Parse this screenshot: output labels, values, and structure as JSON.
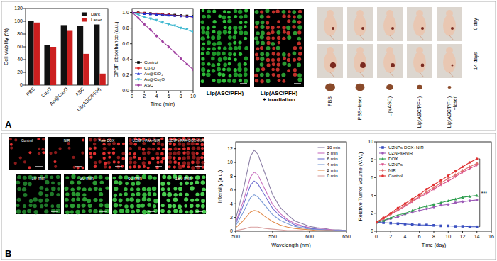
{
  "panel_labels": [
    "A",
    "B"
  ],
  "images": {
    "a_micrographs": [
      [
        "Lip(ASC/PFH)"
      ],
      [
        "Lip(ASC/PFH)",
        "+ irradiation"
      ]
    ],
    "a_mice": {
      "rows": [
        "0 day",
        "14 days"
      ],
      "groups": [
        [
          "PBS"
        ],
        [
          "PBS+laser"
        ],
        [
          "Lip(ASC)"
        ],
        [
          "Lip(ASC/PFH)"
        ],
        [
          "Lip(ASC/PFH)",
          "+laser"
        ]
      ]
    },
    "b_uptake": [
      "Control",
      "NIR",
      "Free DOX",
      "UZNPs-PAA+NIR",
      "UZNPs-PAA-DOX+NIR"
    ],
    "b_time": [
      "10 min",
      "30 min",
      "60 min",
      "180 min"
    ]
  },
  "chart_data": [
    {
      "type": "bar",
      "ylabel": "Cell viability (%)",
      "categories": [
        "PBS",
        "Cu₂O",
        "Au@Cu₂O",
        "ASC",
        "Lip(ASC/PFH)"
      ],
      "series": [
        {
          "name": "Dark",
          "color": "#111111",
          "values": [
            100,
            63,
            94,
            93,
            95
          ]
        },
        {
          "name": "Laser",
          "color": "#cc1f1f",
          "values": [
            98,
            60,
            85,
            49,
            18
          ]
        }
      ],
      "ylim": [
        0,
        120
      ],
      "yticks": [
        0,
        20,
        40,
        60,
        80,
        100,
        120
      ],
      "grid": false,
      "legend": "upper right"
    },
    {
      "type": "line",
      "xlabel": "Time (min)",
      "ylabel": "DPBF absorbance (a.u.)",
      "x": [
        0,
        1,
        2,
        3,
        4,
        5,
        6,
        7,
        8,
        9,
        10
      ],
      "series": [
        {
          "name": "Control",
          "color": "#000000",
          "marker": "square",
          "values": [
            1.0,
            0.995,
            0.99,
            0.985,
            0.98,
            0.975,
            0.97,
            0.965,
            0.96,
            0.955,
            0.95
          ]
        },
        {
          "name": "Cu₂O",
          "color": "#e02020",
          "marker": "circle",
          "values": [
            1.0,
            0.995,
            0.99,
            0.985,
            0.98,
            0.975,
            0.97,
            0.96,
            0.955,
            0.95,
            0.94
          ]
        },
        {
          "name": "Au@SiO₂",
          "color": "#2030d0",
          "marker": "triangle",
          "values": [
            1.0,
            0.99,
            0.985,
            0.98,
            0.975,
            0.97,
            0.965,
            0.96,
            0.955,
            0.95,
            0.945
          ]
        },
        {
          "name": "Au@Cu₂O",
          "color": "#40b8d0",
          "marker": "triangle-down",
          "values": [
            1.0,
            0.97,
            0.94,
            0.92,
            0.9,
            0.87,
            0.85,
            0.83,
            0.8,
            0.78,
            0.75
          ]
        },
        {
          "name": "ASC",
          "color": "#a040a0",
          "marker": "diamond",
          "values": [
            1.0,
            0.93,
            0.85,
            0.78,
            0.7,
            0.63,
            0.56,
            0.49,
            0.41,
            0.34,
            0.27
          ]
        }
      ],
      "xlim": [
        0,
        10
      ],
      "xticks": [
        0,
        2,
        4,
        6,
        8,
        10
      ],
      "ylim": [
        0,
        1.05
      ],
      "yticks": [
        {
          "value": 0,
          "label": "0.0"
        },
        {
          "value": 0.2,
          "label": "0.2"
        },
        {
          "value": 0.4,
          "label": "0.4"
        },
        {
          "value": 0.6,
          "label": "0.6"
        },
        {
          "value": 0.8,
          "label": "0.8"
        },
        {
          "value": 1,
          "label": "1.0"
        }
      ],
      "grid": false,
      "legend": "lower left"
    },
    {
      "type": "line",
      "xlabel": "Wavelength (nm)",
      "ylabel": "Intensity (a.u.)",
      "x": [
        500,
        510,
        520,
        525,
        530,
        540,
        550,
        560,
        570,
        580,
        590,
        600,
        610,
        620,
        630,
        640,
        650
      ],
      "series": [
        {
          "name": "10 min",
          "color": "#8c7fa6",
          "marker": "none",
          "values": [
            1.8,
            5.9,
            10.9,
            11.8,
            11.2,
            8.3,
            5.3,
            3.5,
            2.4,
            1.5,
            1.1,
            0.7,
            0.5,
            0.4,
            0.2,
            0.2,
            0.1
          ]
        },
        {
          "name": "8 min",
          "color": "#c86ebf",
          "marker": "none",
          "values": [
            1.3,
            4.3,
            7.9,
            8.6,
            8.2,
            6.0,
            3.9,
            2.6,
            1.7,
            1.1,
            0.8,
            0.5,
            0.3,
            0.3,
            0.2,
            0.1,
            0.1
          ]
        },
        {
          "name": "6 min",
          "color": "#6f6fd0",
          "marker": "none",
          "values": [
            1.1,
            3.7,
            6.7,
            7.3,
            6.9,
            5.1,
            3.3,
            2.2,
            1.5,
            0.9,
            0.7,
            0.4,
            0.3,
            0.2,
            0.1,
            0.1,
            0.1
          ]
        },
        {
          "name": "4 min",
          "color": "#7a9bd6",
          "marker": "none",
          "values": [
            0.8,
            2.7,
            4.9,
            5.3,
            5.0,
            3.7,
            2.4,
            1.6,
            1.1,
            0.7,
            0.5,
            0.3,
            0.2,
            0.2,
            0.1,
            0.1,
            0.1
          ]
        },
        {
          "name": "2 min",
          "color": "#e08a4a",
          "marker": "none",
          "values": [
            0.5,
            1.5,
            2.8,
            3.0,
            2.9,
            2.1,
            1.4,
            0.9,
            0.6,
            0.4,
            0.3,
            0.2,
            0.1,
            0.1,
            0.1,
            0.0,
            0.0
          ]
        },
        {
          "name": "0 min",
          "color": "#d9a0a0",
          "marker": "none",
          "values": [
            0.1,
            0.3,
            0.6,
            0.6,
            0.6,
            0.4,
            0.3,
            0.2,
            0.1,
            0.1,
            0.1,
            0.0,
            0.0,
            0.0,
            0.0,
            0.0,
            0.0
          ]
        }
      ],
      "xlim": [
        500,
        650
      ],
      "xticks": [
        500,
        550,
        600,
        650
      ],
      "ylim": [
        0,
        13
      ],
      "yticks": [
        0,
        2,
        4,
        6,
        8,
        10,
        12
      ],
      "grid": false,
      "legend": "upper right"
    },
    {
      "type": "line",
      "xlabel": "Time (day)",
      "ylabel": "Relative Tumor Volume (V/V₀)",
      "x": [
        0,
        1,
        2,
        3,
        4,
        5,
        6,
        7,
        8,
        9,
        10,
        11,
        12,
        13,
        14
      ],
      "series": [
        {
          "name": "UZNPs-DOX+NIR",
          "color": "#3a4fc0",
          "marker": "square",
          "values": [
            1,
            0.95,
            0.9,
            0.85,
            0.8,
            0.75,
            0.7,
            0.7,
            0.65,
            0.6,
            0.6,
            0.55,
            0.55,
            0.5,
            0.5
          ]
        },
        {
          "name": "UZNPs+NIR",
          "color": "#9b59b6",
          "marker": "circle",
          "values": [
            1,
            1.2,
            1.4,
            1.6,
            1.9,
            2.1,
            2.3,
            2.5,
            2.7,
            2.9,
            3.0,
            3.2,
            3.3,
            3.4,
            3.5
          ]
        },
        {
          "name": "DOX",
          "color": "#2e9e4f",
          "marker": "triangle",
          "values": [
            1,
            1.2,
            1.5,
            1.8,
            2.0,
            2.3,
            2.6,
            2.8,
            3.0,
            3.2,
            3.4,
            3.6,
            3.8,
            3.9,
            4.0
          ]
        },
        {
          "name": "UZNPs",
          "color": "#d94f8a",
          "marker": "triangle-down",
          "values": [
            1,
            1.4,
            1.9,
            2.3,
            2.8,
            3.3,
            3.8,
            4.2,
            4.7,
            5.2,
            5.6,
            6.1,
            6.6,
            7.0,
            7.4
          ]
        },
        {
          "name": "NIR",
          "color": "#e07070",
          "marker": "diamond",
          "values": [
            1,
            1.4,
            1.9,
            2.4,
            2.9,
            3.4,
            3.9,
            4.4,
            4.9,
            5.4,
            5.9,
            6.3,
            6.8,
            7.2,
            7.6
          ]
        },
        {
          "name": "Control",
          "color": "#e03030",
          "marker": "circle",
          "values": [
            1,
            1.5,
            2.0,
            2.6,
            3.1,
            3.6,
            4.1,
            4.7,
            5.2,
            5.7,
            6.2,
            6.7,
            7.2,
            7.7,
            8.1
          ]
        }
      ],
      "annotations": [
        "***"
      ],
      "xlim": [
        0,
        16
      ],
      "xticks": [
        0,
        2,
        4,
        6,
        8,
        10,
        12,
        14,
        16
      ],
      "ylim": [
        0,
        10
      ],
      "yticks": [
        0,
        2,
        4,
        6,
        8,
        10
      ],
      "grid": false,
      "legend": "upper left"
    }
  ]
}
